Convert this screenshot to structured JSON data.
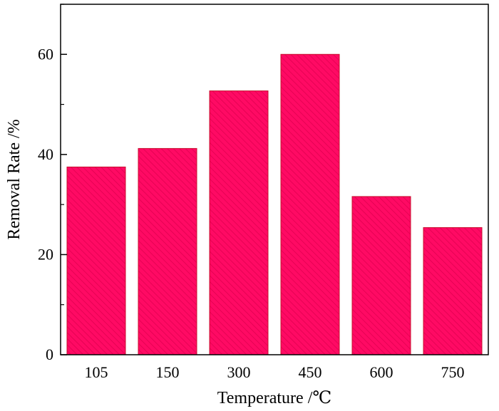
{
  "chart_data": {
    "type": "bar",
    "title": "",
    "xlabel": "Temperature /℃",
    "ylabel": "Removal Rate /%",
    "categories": [
      "105",
      "150",
      "300",
      "450",
      "600",
      "750"
    ],
    "series": [
      {
        "values": [
          37.5,
          41.2,
          52.7,
          60.0,
          31.6,
          25.4
        ]
      }
    ],
    "ylim": [
      0,
      70
    ],
    "yticks": [
      0,
      20,
      40,
      60
    ],
    "y_minor_ticks": [
      10,
      30,
      50,
      70
    ],
    "grid": false,
    "legend": "none",
    "bar_fill": "#ff0a64",
    "bar_hatch": "#e00050",
    "bar_edge": "#c8102e"
  }
}
